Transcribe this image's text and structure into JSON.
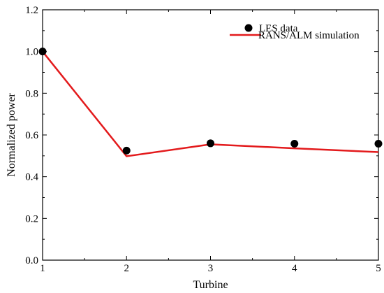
{
  "chart_data": {
    "type": "line",
    "title": "",
    "xlabel": "Turbine",
    "ylabel": "Normalized power",
    "xlim": [
      1,
      5
    ],
    "ylim": [
      0.0,
      1.2
    ],
    "x_ticks": [
      "1",
      "2",
      "3",
      "4",
      "5"
    ],
    "y_ticks": [
      "0.0",
      "0.2",
      "0.4",
      "0.6",
      "0.8",
      "1.0",
      "1.2"
    ],
    "grid": false,
    "legend_position": "top-right",
    "series": [
      {
        "name": "LES data",
        "style": "scatter",
        "color": "#000000",
        "x": [
          1,
          2,
          3,
          4,
          5
        ],
        "values": [
          1.0,
          0.525,
          0.56,
          0.558,
          0.558
        ]
      },
      {
        "name": "RANS/ALM simulation",
        "style": "line",
        "color": "#e31a1c",
        "x": [
          1,
          2,
          3,
          4,
          5
        ],
        "values": [
          1.0,
          0.498,
          0.555,
          0.536,
          0.518
        ]
      }
    ]
  }
}
